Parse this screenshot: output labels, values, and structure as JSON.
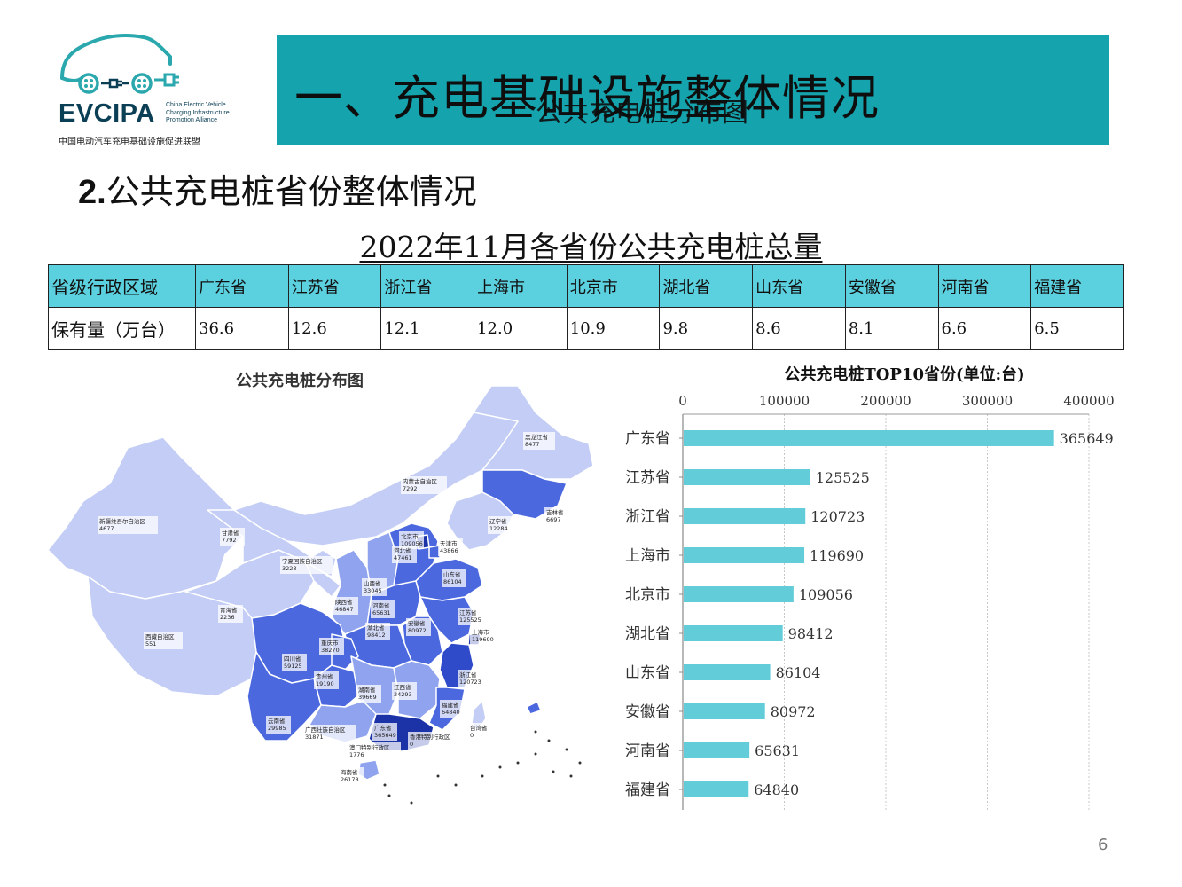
{
  "logo": {
    "acronym": "EVCIPA",
    "english": "China Electric Vehicle\nCharging Infrastructure\nPromotion Alliance",
    "chinese": "中国电动汽车充电基础设施促进联盟",
    "color": "#0b3f55",
    "accent": "#2aa8ad"
  },
  "banner": {
    "title": "一、充电基础设施整体情况",
    "overlay_text": "公共充电桩分布图",
    "color": "#15a3ad"
  },
  "section": {
    "number": "2.",
    "heading": "公共充电桩省份整体情况"
  },
  "table": {
    "title": "2022年11月各省份公共充电桩总量",
    "header_label": "省级行政区域",
    "value_label": "保有量（万台）",
    "provinces": [
      "广东省",
      "江苏省",
      "浙江省",
      "上海市",
      "北京市",
      "湖北省",
      "山东省",
      "安徽省",
      "河南省",
      "福建省"
    ],
    "values": [
      "36.6",
      "12.6",
      "12.1",
      "12.0",
      "10.9",
      "9.8",
      "8.6",
      "8.1",
      "6.6",
      "6.5"
    ],
    "header_color": "#5bd0de"
  },
  "map": {
    "title": "公共充电桩分布图",
    "labels": [
      {
        "name": "黑龙江省",
        "value": "8477"
      },
      {
        "name": "内蒙古自治区",
        "value": "7292"
      },
      {
        "name": "吉林省",
        "value": "6697"
      },
      {
        "name": "辽宁省",
        "value": "12284"
      },
      {
        "name": "新疆维吾尔自治区",
        "value": "4677"
      },
      {
        "name": "甘肃省",
        "value": "7792"
      },
      {
        "name": "北京市",
        "value": "109056"
      },
      {
        "name": "天津市",
        "value": "43866"
      },
      {
        "name": "河北省",
        "value": "47461"
      },
      {
        "name": "宁夏回族自治区",
        "value": "3223"
      },
      {
        "name": "山东省",
        "value": "86104"
      },
      {
        "name": "山西省",
        "value": "33045"
      },
      {
        "name": "青海省",
        "value": "2236"
      },
      {
        "name": "陕西省",
        "value": "46847"
      },
      {
        "name": "河南省",
        "value": "65631"
      },
      {
        "name": "江苏省",
        "value": "125525"
      },
      {
        "name": "湖北省",
        "value": "98412"
      },
      {
        "name": "安徽省",
        "value": "80972"
      },
      {
        "name": "上海市",
        "value": "119690"
      },
      {
        "name": "西藏自治区",
        "value": "551"
      },
      {
        "name": "重庆市",
        "value": "38270"
      },
      {
        "name": "四川省",
        "value": "59125"
      },
      {
        "name": "浙江省",
        "value": "120723"
      },
      {
        "name": "贵州省",
        "value": "19190"
      },
      {
        "name": "湖南省",
        "value": "39669"
      },
      {
        "name": "江西省",
        "value": "24293"
      },
      {
        "name": "福建省",
        "value": "64840"
      },
      {
        "name": "云南省",
        "value": "29985"
      },
      {
        "name": "广西壮族自治区",
        "value": "31871"
      },
      {
        "name": "广东省",
        "value": "365649"
      },
      {
        "name": "香港特别行政区",
        "value": "0"
      },
      {
        "name": "台湾省",
        "value": "0"
      },
      {
        "name": "澳门特别行政区",
        "value": "1776"
      },
      {
        "name": "海南省",
        "value": "26178"
      }
    ],
    "colors": {
      "light": "#c3cdf5",
      "mid": "#8fa3ee",
      "dark": "#4b68de",
      "darkest": "#1c33a8"
    }
  },
  "chart_data": {
    "type": "bar",
    "orientation": "horizontal",
    "title": "公共充电桩TOP10省份(单位:台)",
    "categories": [
      "广东省",
      "江苏省",
      "浙江省",
      "上海市",
      "北京市",
      "湖北省",
      "山东省",
      "安徽省",
      "河南省",
      "福建省"
    ],
    "values": [
      365649,
      125525,
      120723,
      119690,
      109056,
      98412,
      86104,
      80972,
      65631,
      64840
    ],
    "xlim": [
      0,
      400000
    ],
    "xticks": [
      0,
      100000,
      200000,
      300000,
      400000
    ],
    "axis_position": "top",
    "grid": true,
    "legend": "none",
    "bar_color": "#62cdd8"
  },
  "page_number": "6"
}
